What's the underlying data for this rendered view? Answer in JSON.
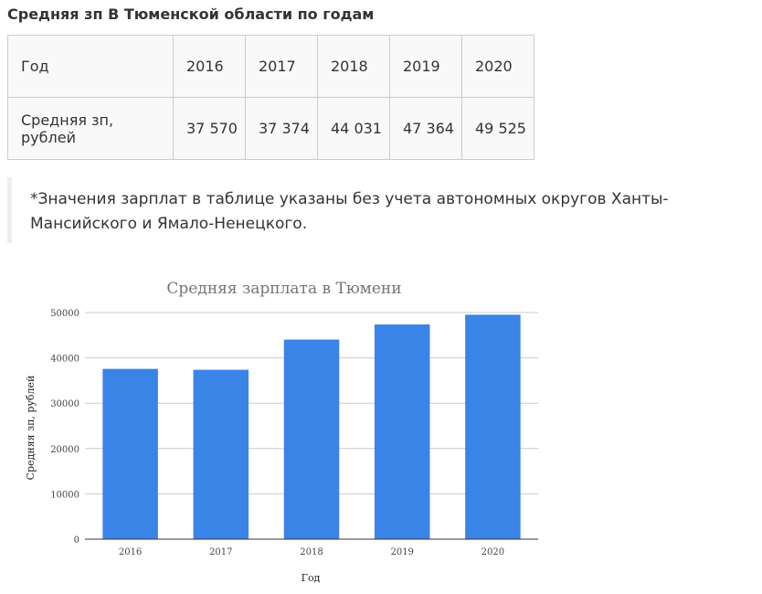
{
  "heading": "Средняя зп В Тюменской области по годам",
  "table": {
    "header_label": "Год",
    "years": [
      "2016",
      "2017",
      "2018",
      "2019",
      "2020"
    ],
    "row_label": "Средняя зп, рублей",
    "values": [
      "37 570",
      "37 374",
      "44 031",
      "47 364",
      "49 525"
    ]
  },
  "note": "*Значения зарплат в таблице указаны без учета автономных округов Ханты-Мансийского и Ямало-Ненецкого.",
  "chart_data": {
    "type": "bar",
    "title": "Средняя зарплата в Тюмени",
    "xlabel": "Год",
    "ylabel": "Средняя зп, рублей",
    "categories": [
      "2016",
      "2017",
      "2018",
      "2019",
      "2020"
    ],
    "values": [
      37570,
      37374,
      44031,
      47364,
      49525
    ],
    "ylim": [
      0,
      50000
    ],
    "yticks": [
      0,
      10000,
      20000,
      30000,
      40000,
      50000
    ],
    "grid": true,
    "legend": "none",
    "bar_color": "#3a84e8"
  }
}
